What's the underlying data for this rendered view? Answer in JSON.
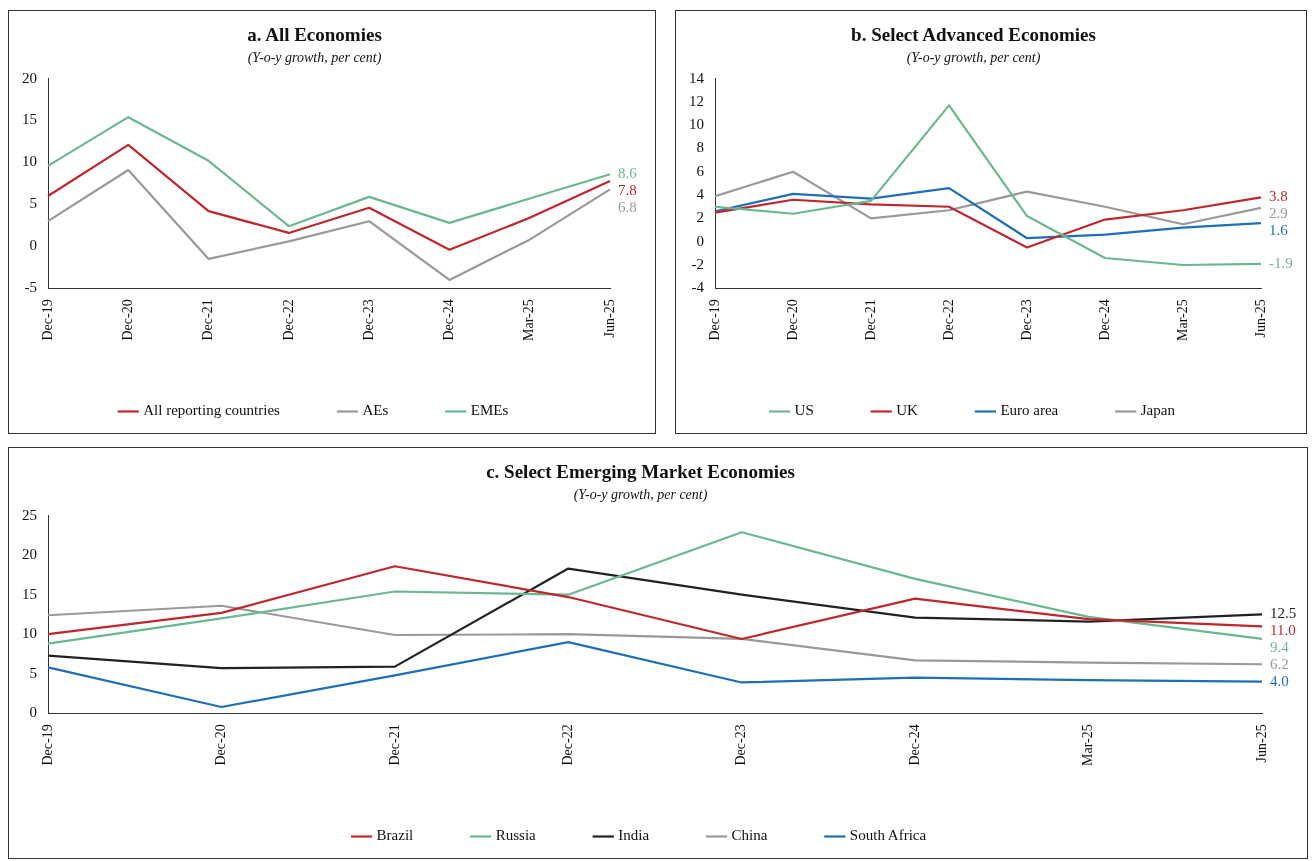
{
  "chart_data": [
    {
      "type": "line",
      "title": "a. All Economies",
      "subtitle": "(Y-o-y growth, per cent)",
      "categories": [
        "Dec-19",
        "Dec-20",
        "Dec-21",
        "Dec-22",
        "Dec-23",
        "Dec-24",
        "Mar-25",
        "Jun-25"
      ],
      "ylim": [
        -5,
        20
      ],
      "yticks": [
        -5,
        0,
        5,
        10,
        15,
        20
      ],
      "grid": false,
      "legend": "bottom",
      "marker": "none",
      "series": [
        {
          "name": "All reporting countries",
          "color": "#c0272d",
          "values": [
            6.0,
            12.1,
            4.2,
            1.6,
            4.6,
            -0.4,
            3.4,
            7.8
          ],
          "value_labels": [
            null,
            null,
            null,
            null,
            null,
            null,
            null,
            "7.8"
          ]
        },
        {
          "name": "AEs",
          "color": "#999999",
          "values": [
            3.0,
            9.1,
            -1.5,
            0.6,
            3.0,
            -4.0,
            0.8,
            6.8
          ],
          "value_labels": [
            null,
            null,
            null,
            null,
            null,
            null,
            null,
            "6.8"
          ]
        },
        {
          "name": "EMEs",
          "color": "#6bb88f",
          "values": [
            9.6,
            15.4,
            10.2,
            2.4,
            5.9,
            2.8,
            5.7,
            8.6
          ],
          "value_labels": [
            null,
            null,
            null,
            null,
            null,
            null,
            null,
            "8.6"
          ]
        }
      ]
    },
    {
      "type": "line",
      "title": "b. Select Advanced Economies",
      "subtitle": "(Y-o-y growth, per cent)",
      "categories": [
        "Dec-19",
        "Dec-20",
        "Dec-21",
        "Dec-22",
        "Dec-23",
        "Dec-24",
        "Mar-25",
        "Jun-25"
      ],
      "ylim": [
        -4,
        14
      ],
      "yticks": [
        -4,
        -2,
        0,
        2,
        4,
        6,
        8,
        10,
        12,
        14
      ],
      "grid": false,
      "legend": "bottom",
      "marker": "none",
      "series": [
        {
          "name": "US",
          "color": "#6bb88f",
          "values": [
            3.0,
            2.4,
            3.5,
            11.7,
            2.2,
            -1.4,
            -2.0,
            -1.9
          ],
          "value_labels": [
            null,
            null,
            null,
            null,
            null,
            null,
            null,
            "-1.9"
          ]
        },
        {
          "name": "UK",
          "color": "#c0272d",
          "values": [
            2.5,
            3.6,
            3.2,
            3.0,
            -0.5,
            1.9,
            2.7,
            3.8
          ],
          "value_labels": [
            null,
            null,
            null,
            null,
            null,
            null,
            null,
            "3.8"
          ]
        },
        {
          "name": "Euro area",
          "color": "#1f6fb8",
          "values": [
            2.6,
            4.1,
            3.7,
            4.6,
            0.3,
            0.6,
            1.2,
            1.6
          ],
          "value_labels": [
            null,
            null,
            null,
            null,
            null,
            null,
            null,
            "1.6"
          ]
        },
        {
          "name": "Japan",
          "color": "#999999",
          "values": [
            3.9,
            6.0,
            2.0,
            2.7,
            4.3,
            3.0,
            1.5,
            2.9
          ],
          "value_labels": [
            null,
            null,
            null,
            null,
            null,
            null,
            null,
            "2.9"
          ]
        }
      ]
    },
    {
      "type": "line",
      "title": "c. Select Emerging Market Economies",
      "subtitle": "(Y-o-y growth, per cent)",
      "categories": [
        "Dec-19",
        "Dec-20",
        "Dec-21",
        "Dec-22",
        "Dec-23",
        "Dec-24",
        "Mar-25",
        "Jun-25"
      ],
      "ylim": [
        0,
        25
      ],
      "yticks": [
        0,
        5,
        10,
        15,
        20,
        25
      ],
      "grid": false,
      "legend": "bottom",
      "marker": "none",
      "series": [
        {
          "name": "Brazil",
          "color": "#c0272d",
          "values": [
            10.0,
            12.7,
            18.6,
            14.7,
            9.4,
            14.5,
            11.9,
            11.0
          ],
          "value_labels": [
            null,
            null,
            null,
            null,
            null,
            null,
            null,
            "11.0"
          ]
        },
        {
          "name": "Russia",
          "color": "#6bb88f",
          "values": [
            8.8,
            12.0,
            15.4,
            15.0,
            22.9,
            17.0,
            12.2,
            9.4
          ],
          "value_labels": [
            null,
            null,
            null,
            null,
            null,
            null,
            null,
            "9.4"
          ]
        },
        {
          "name": "India",
          "color": "#222222",
          "values": [
            7.3,
            5.7,
            5.9,
            18.3,
            15.0,
            12.1,
            11.6,
            12.5
          ],
          "value_labels": [
            null,
            null,
            null,
            null,
            null,
            null,
            null,
            "12.5"
          ]
        },
        {
          "name": "China",
          "color": "#999999",
          "values": [
            12.4,
            13.6,
            9.9,
            10.0,
            9.4,
            6.7,
            6.4,
            6.2
          ],
          "value_labels": [
            null,
            null,
            null,
            null,
            null,
            null,
            null,
            "6.2"
          ]
        },
        {
          "name": "South Africa",
          "color": "#1f6fb8",
          "values": [
            5.8,
            0.8,
            4.8,
            9.0,
            3.9,
            4.5,
            4.2,
            4.0
          ],
          "value_labels": [
            null,
            null,
            null,
            null,
            null,
            null,
            null,
            "4.0"
          ]
        }
      ]
    }
  ]
}
